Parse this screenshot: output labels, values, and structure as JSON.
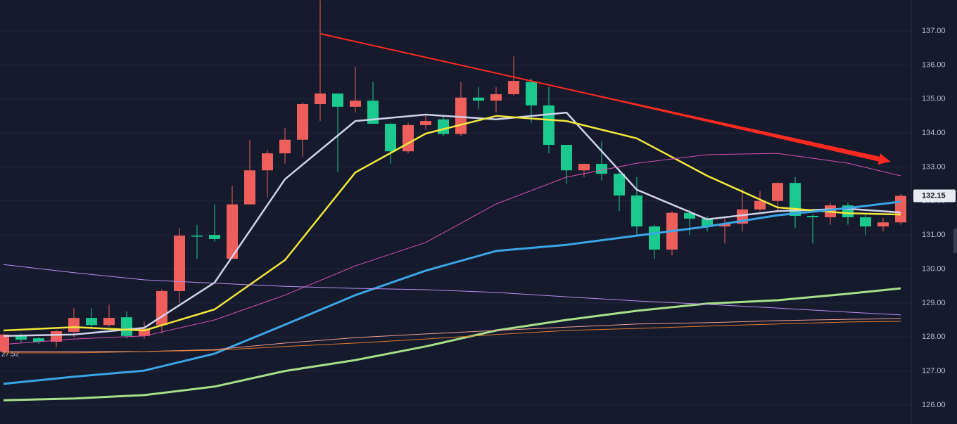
{
  "chart_data": {
    "type": "candlestick",
    "up_color": "#ee5f5b",
    "down_color": "#1bc98e",
    "xlim": [
      -0.2,
      51.6
    ],
    "ylim": [
      125.44,
      137.91
    ],
    "grid": true,
    "yticks": [
      {
        "value": 126,
        "label": "126.00"
      },
      {
        "value": 127,
        "label": "127.00"
      },
      {
        "value": 128,
        "label": "128.00"
      },
      {
        "value": 129,
        "label": "129.00"
      },
      {
        "value": 130,
        "label": "130.00"
      },
      {
        "value": 131,
        "label": "131.00"
      },
      {
        "value": 132,
        "label": "132.00"
      },
      {
        "value": 133,
        "label": "133.00"
      },
      {
        "value": 134,
        "label": "134.00"
      },
      {
        "value": 135,
        "label": "135.00"
      },
      {
        "value": 136,
        "label": "136.00"
      },
      {
        "value": 137,
        "label": "137.00"
      }
    ],
    "last_price": {
      "value": 132.15,
      "label": "132.15"
    },
    "left_label": "27.52",
    "open": [
      127.57,
      128.02,
      127.96,
      127.86,
      128.15,
      128.56,
      128.35,
      128.58,
      128.03,
      128.35,
      129.35,
      130.98,
      131.0,
      130.3,
      131.9,
      132.9,
      133.4,
      133.8,
      134.85,
      135.16,
      134.77,
      134.95,
      134.27,
      133.46,
      134.23,
      134.4,
      133.97,
      135.04,
      134.95,
      135.14,
      135.5,
      134.81,
      133.65,
      132.9,
      133.09,
      132.8,
      132.16,
      131.25,
      130.57,
      131.65,
      131.48,
      131.25,
      131.33,
      131.75,
      132.0,
      132.53,
      131.56,
      131.52,
      131.87,
      131.52,
      131.25,
      131.37
    ],
    "high": [
      128.1,
      128.1,
      128.0,
      128.2,
      128.85,
      128.85,
      128.95,
      128.75,
      128.45,
      129.4,
      131.2,
      131.3,
      131.9,
      132.45,
      133.8,
      133.5,
      134.15,
      134.9,
      137.9,
      135.16,
      135.95,
      135.5,
      134.3,
      134.3,
      134.5,
      134.5,
      135.5,
      135.35,
      135.35,
      136.25,
      135.6,
      135.35,
      133.65,
      133.1,
      133.75,
      132.95,
      132.7,
      131.3,
      131.7,
      131.75,
      131.55,
      131.5,
      132.35,
      132.3,
      132.55,
      132.7,
      131.6,
      131.95,
      131.95,
      131.6,
      131.5,
      132.2
    ],
    "low": [
      127.5,
      127.85,
      127.8,
      127.7,
      128.0,
      128.25,
      128.3,
      127.95,
      127.95,
      128.1,
      129.0,
      130.3,
      130.8,
      130.3,
      131.9,
      132.1,
      133.1,
      133.3,
      134.35,
      132.85,
      134.6,
      134.3,
      133.1,
      133.4,
      134.1,
      133.9,
      133.9,
      134.7,
      134.6,
      135.1,
      134.3,
      133.4,
      132.5,
      132.7,
      132.6,
      131.7,
      131.0,
      130.3,
      130.4,
      131.0,
      131.1,
      130.75,
      131.1,
      131.7,
      131.7,
      131.2,
      130.75,
      131.3,
      131.3,
      131.0,
      131.1,
      131.3
    ],
    "close": [
      128.07,
      127.92,
      127.86,
      128.17,
      128.56,
      128.35,
      128.56,
      128.03,
      128.24,
      129.35,
      130.98,
      130.96,
      130.88,
      131.9,
      132.9,
      133.4,
      133.8,
      134.85,
      135.16,
      134.77,
      134.95,
      134.27,
      133.46,
      134.23,
      134.35,
      133.97,
      135.04,
      134.95,
      135.14,
      135.53,
      134.81,
      133.65,
      132.9,
      133.09,
      132.8,
      132.16,
      131.25,
      130.57,
      131.65,
      131.48,
      131.25,
      131.33,
      131.75,
      132.0,
      132.53,
      131.56,
      131.52,
      131.87,
      131.52,
      131.25,
      131.37,
      132.15
    ],
    "ma_x": [
      0,
      4,
      8,
      12,
      16,
      20,
      24,
      28,
      32,
      36,
      40,
      44,
      48,
      51
    ],
    "series": [
      {
        "color": "#cfd3ea",
        "width": 2.5,
        "values": [
          128.03,
          128.07,
          128.27,
          129.6,
          132.64,
          134.35,
          134.54,
          134.4,
          134.6,
          132.33,
          131.46,
          131.7,
          131.77,
          131.66
        ]
      },
      {
        "color": "#f2e73a",
        "width": 2.5,
        "values": [
          128.19,
          128.29,
          128.19,
          128.81,
          130.26,
          132.84,
          133.98,
          134.5,
          134.35,
          133.84,
          132.74,
          131.81,
          131.64,
          131.6
        ]
      },
      {
        "color": "#3aa6e8",
        "width": 3,
        "values": [
          126.62,
          126.83,
          127.01,
          127.51,
          128.36,
          129.23,
          129.95,
          130.53,
          130.71,
          130.98,
          131.25,
          131.58,
          131.79,
          131.98
        ]
      },
      {
        "color": "#a8e08a",
        "width": 3,
        "values": [
          126.14,
          126.19,
          126.29,
          126.54,
          127.0,
          127.32,
          127.72,
          128.19,
          128.5,
          128.77,
          128.98,
          129.08,
          129.27,
          129.43
        ]
      },
      {
        "color": "#d64fb0",
        "width": 1,
        "values": [
          127.78,
          127.94,
          128.03,
          128.5,
          129.23,
          130.09,
          130.78,
          131.91,
          132.7,
          133.11,
          133.36,
          133.4,
          133.11,
          132.74
        ]
      },
      {
        "color": "#b98ef0",
        "width": 1,
        "values": [
          130.13,
          129.89,
          129.68,
          129.58,
          129.49,
          129.43,
          129.39,
          129.31,
          129.18,
          129.06,
          128.96,
          128.85,
          128.73,
          128.65
        ]
      },
      {
        "color": "#f0a090",
        "width": 1,
        "values": [
          127.57,
          127.57,
          127.57,
          127.63,
          127.82,
          127.98,
          128.09,
          128.19,
          128.29,
          128.38,
          128.42,
          128.48,
          128.52,
          128.54
        ]
      },
      {
        "color": "#e07a2a",
        "width": 1,
        "values": [
          127.53,
          127.53,
          127.57,
          127.61,
          127.72,
          127.82,
          127.94,
          128.07,
          128.19,
          128.25,
          128.32,
          128.38,
          128.44,
          128.46
        ]
      }
    ],
    "trendline": {
      "color": "#ff2a20",
      "x": [
        18,
        50.4
      ],
      "values": [
        136.92,
        133.16
      ]
    }
  }
}
